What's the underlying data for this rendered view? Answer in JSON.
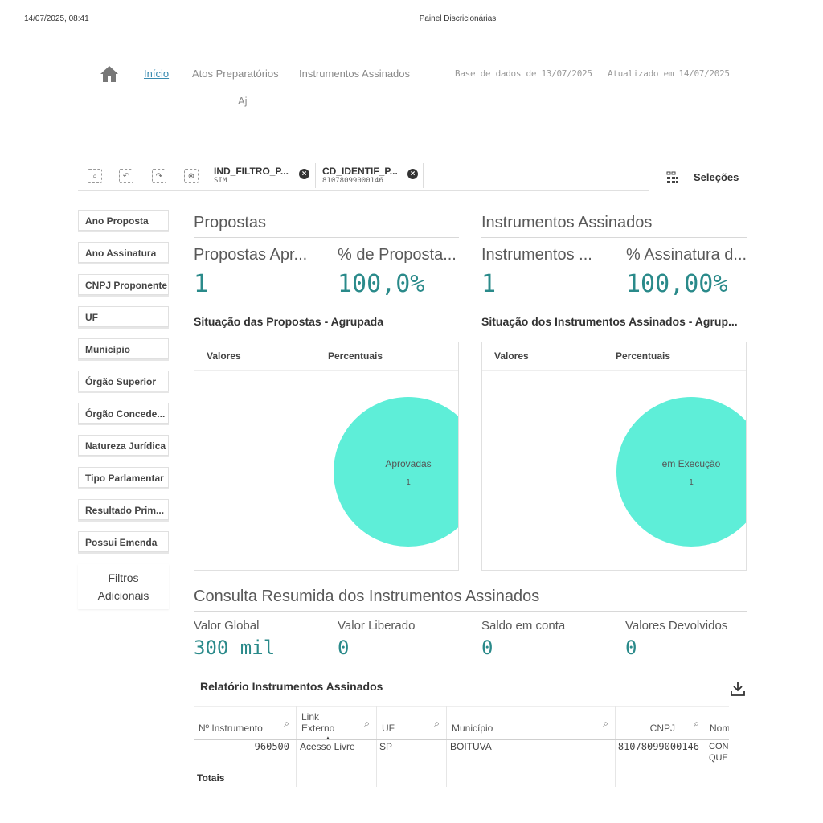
{
  "print_header": {
    "datetime": "14/07/2025, 08:41",
    "title": "Painel Discricionárias"
  },
  "nav": {
    "home_icon": "home-icon",
    "items": [
      "Início",
      "Atos Preparatórios",
      "Instrumentos Assinados",
      "Aj"
    ],
    "database_date": "Base de dados de 13/07/2025",
    "updated_at": "Atualizado em 14/07/2025"
  },
  "selections_bar": {
    "tools": [
      "smart-search-icon",
      "step-back-icon",
      "step-forward-icon",
      "clear-selections-icon"
    ],
    "chips": [
      {
        "field": "IND_FILTRO_P...",
        "value": "SIM"
      },
      {
        "field": "CD_IDENTIF_P...",
        "value": "81078099000146"
      }
    ],
    "selections_label": "Seleções"
  },
  "filters": [
    "Ano Proposta",
    "Ano Assinatura",
    "CNPJ Proponente",
    "UF",
    "Município",
    "Órgão Superior",
    "Órgão Concede...",
    "Natureza Jurídica",
    "Tipo Parlamentar",
    "Resultado Prim...",
    "Possui Emenda"
  ],
  "more_filters": [
    "Filtros",
    "Adicionais"
  ],
  "propostas": {
    "title": "Propostas",
    "kpi1_label": "Propostas Apr...",
    "kpi1_value": "1",
    "kpi2_label": "% de Proposta...",
    "kpi2_value": "100,0%",
    "chart_title": "Situação das Propostas - Agrupada",
    "tabs": [
      "Valores",
      "Percentuais"
    ],
    "pie_label": "Aprovadas",
    "pie_count": "1"
  },
  "instrumentos": {
    "title": "Instrumentos Assinados",
    "kpi1_label": "Instrumentos ...",
    "kpi1_value": "1",
    "kpi2_label": "% Assinatura d...",
    "kpi2_value": "100,00%",
    "chart_title": "Situação dos Instrumentos Assinados - Agrup...",
    "tabs": [
      "Valores",
      "Percentuais"
    ],
    "pie_label": "em Execução",
    "pie_count": "1"
  },
  "summary": {
    "title": "Consulta Resumida dos Instrumentos Assinados",
    "items": [
      {
        "label": "Valor Global",
        "value": "300 mil"
      },
      {
        "label": "Valor Liberado",
        "value": "0"
      },
      {
        "label": "Saldo em conta",
        "value": "0"
      },
      {
        "label": "Valores Devolvidos",
        "value": "0"
      }
    ]
  },
  "report": {
    "title": "Relatório Instrumentos Assinados",
    "columns": [
      "Nº Instrumento",
      "Link Externo",
      "UF",
      "Município",
      "CNPJ",
      "Nom"
    ],
    "row": [
      "960500",
      "Acesso Livre",
      "SP",
      "BOITUVA",
      "81078099000146",
      "CON QUE"
    ],
    "totals_label": "Totais"
  },
  "colors": {
    "accent_teal": "#2a8a8a",
    "pie_fill": "#5eeed8",
    "active_link": "#3a8bb0"
  }
}
